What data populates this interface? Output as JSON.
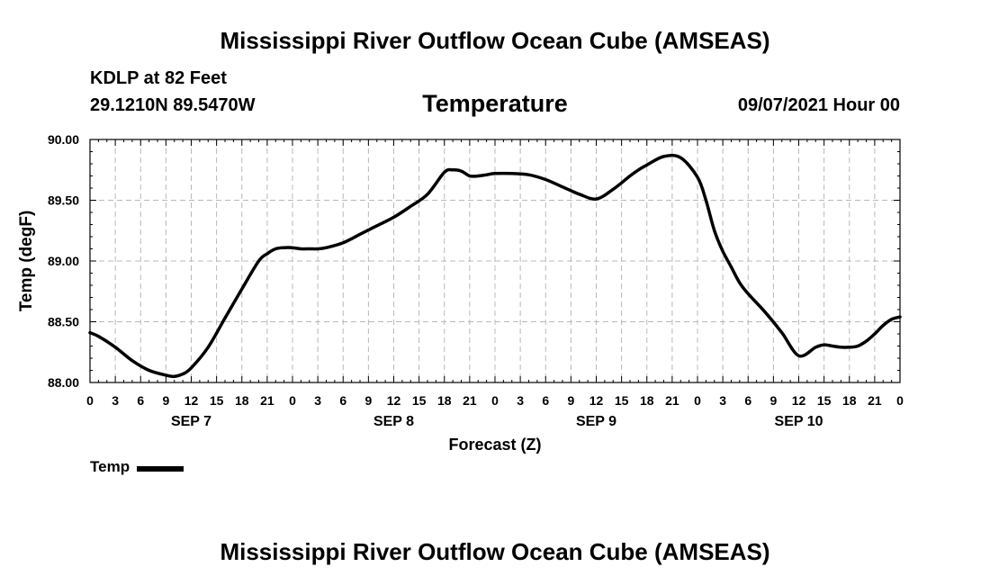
{
  "header": {
    "title": "Mississippi River Outflow Ocean Cube (AMSEAS)",
    "station": "KDLP at 82 Feet",
    "coords": "29.1210N  89.5470W",
    "variable": "Temperature",
    "datetime": "09/07/2021 Hour 00"
  },
  "footer": {
    "title": "Mississippi River Outflow Ocean Cube (AMSEAS)"
  },
  "legend": {
    "label": "Temp"
  },
  "chart_data": {
    "type": "line",
    "title": "Temperature",
    "xlabel": "Forecast (Z)",
    "ylabel": "Temp (degF)",
    "xlim": [
      0,
      96
    ],
    "ylim": [
      88.0,
      90.0
    ],
    "yticks": [
      88.0,
      88.5,
      89.0,
      89.5,
      90.0
    ],
    "ytick_labels": [
      "88.00",
      "88.50",
      "89.00",
      "89.50",
      "90.00"
    ],
    "xtick_hours": [
      0,
      3,
      6,
      9,
      12,
      15,
      18,
      21,
      24,
      27,
      30,
      33,
      36,
      39,
      42,
      45,
      48,
      51,
      54,
      57,
      60,
      63,
      66,
      69,
      72,
      75,
      78,
      81,
      84,
      87,
      90,
      93,
      96
    ],
    "xtick_labels": [
      "0",
      "3",
      "6",
      "9",
      "12",
      "15",
      "18",
      "21",
      "0",
      "3",
      "6",
      "9",
      "12",
      "15",
      "18",
      "21",
      "0",
      "3",
      "6",
      "9",
      "12",
      "15",
      "18",
      "21",
      "0",
      "3",
      "6",
      "9",
      "12",
      "15",
      "18",
      "21",
      "0"
    ],
    "day_labels": [
      {
        "hour": 12,
        "label": "SEP 7"
      },
      {
        "hour": 36,
        "label": "SEP 8"
      },
      {
        "hour": 60,
        "label": "SEP 9"
      },
      {
        "hour": 84,
        "label": "SEP 10"
      }
    ],
    "grid": true,
    "legend_position": "bottom-left",
    "series": [
      {
        "name": "Temp",
        "color": "#000000",
        "x": [
          0,
          1,
          3,
          5,
          7,
          9,
          10,
          11,
          12,
          14,
          16,
          18,
          20,
          21,
          22,
          23,
          24,
          25,
          26,
          27,
          28,
          30,
          32,
          34,
          36,
          38,
          40,
          42,
          43,
          44,
          45,
          46,
          47,
          48,
          50,
          52,
          54,
          56,
          58,
          60,
          62,
          64,
          65,
          66,
          68,
          70,
          72,
          73,
          74,
          75,
          76,
          77,
          78,
          80,
          82,
          84,
          86,
          87,
          88,
          89,
          90,
          91,
          92,
          93,
          94,
          95,
          96
        ],
        "values": [
          88.41,
          88.38,
          88.29,
          88.18,
          88.1,
          88.06,
          88.05,
          88.07,
          88.12,
          88.29,
          88.53,
          88.77,
          89.0,
          89.06,
          89.1,
          89.11,
          89.11,
          89.1,
          89.1,
          89.1,
          89.11,
          89.15,
          89.22,
          89.29,
          89.36,
          89.45,
          89.55,
          89.73,
          89.75,
          89.74,
          89.7,
          89.7,
          89.71,
          89.72,
          89.72,
          89.71,
          89.67,
          89.61,
          89.55,
          89.51,
          89.59,
          89.7,
          89.75,
          89.79,
          89.86,
          89.85,
          89.69,
          89.5,
          89.25,
          89.08,
          88.95,
          88.82,
          88.73,
          88.58,
          88.41,
          88.22,
          88.29,
          88.31,
          88.3,
          88.29,
          88.29,
          88.3,
          88.34,
          88.4,
          88.47,
          88.52,
          88.54
        ]
      }
    ]
  }
}
